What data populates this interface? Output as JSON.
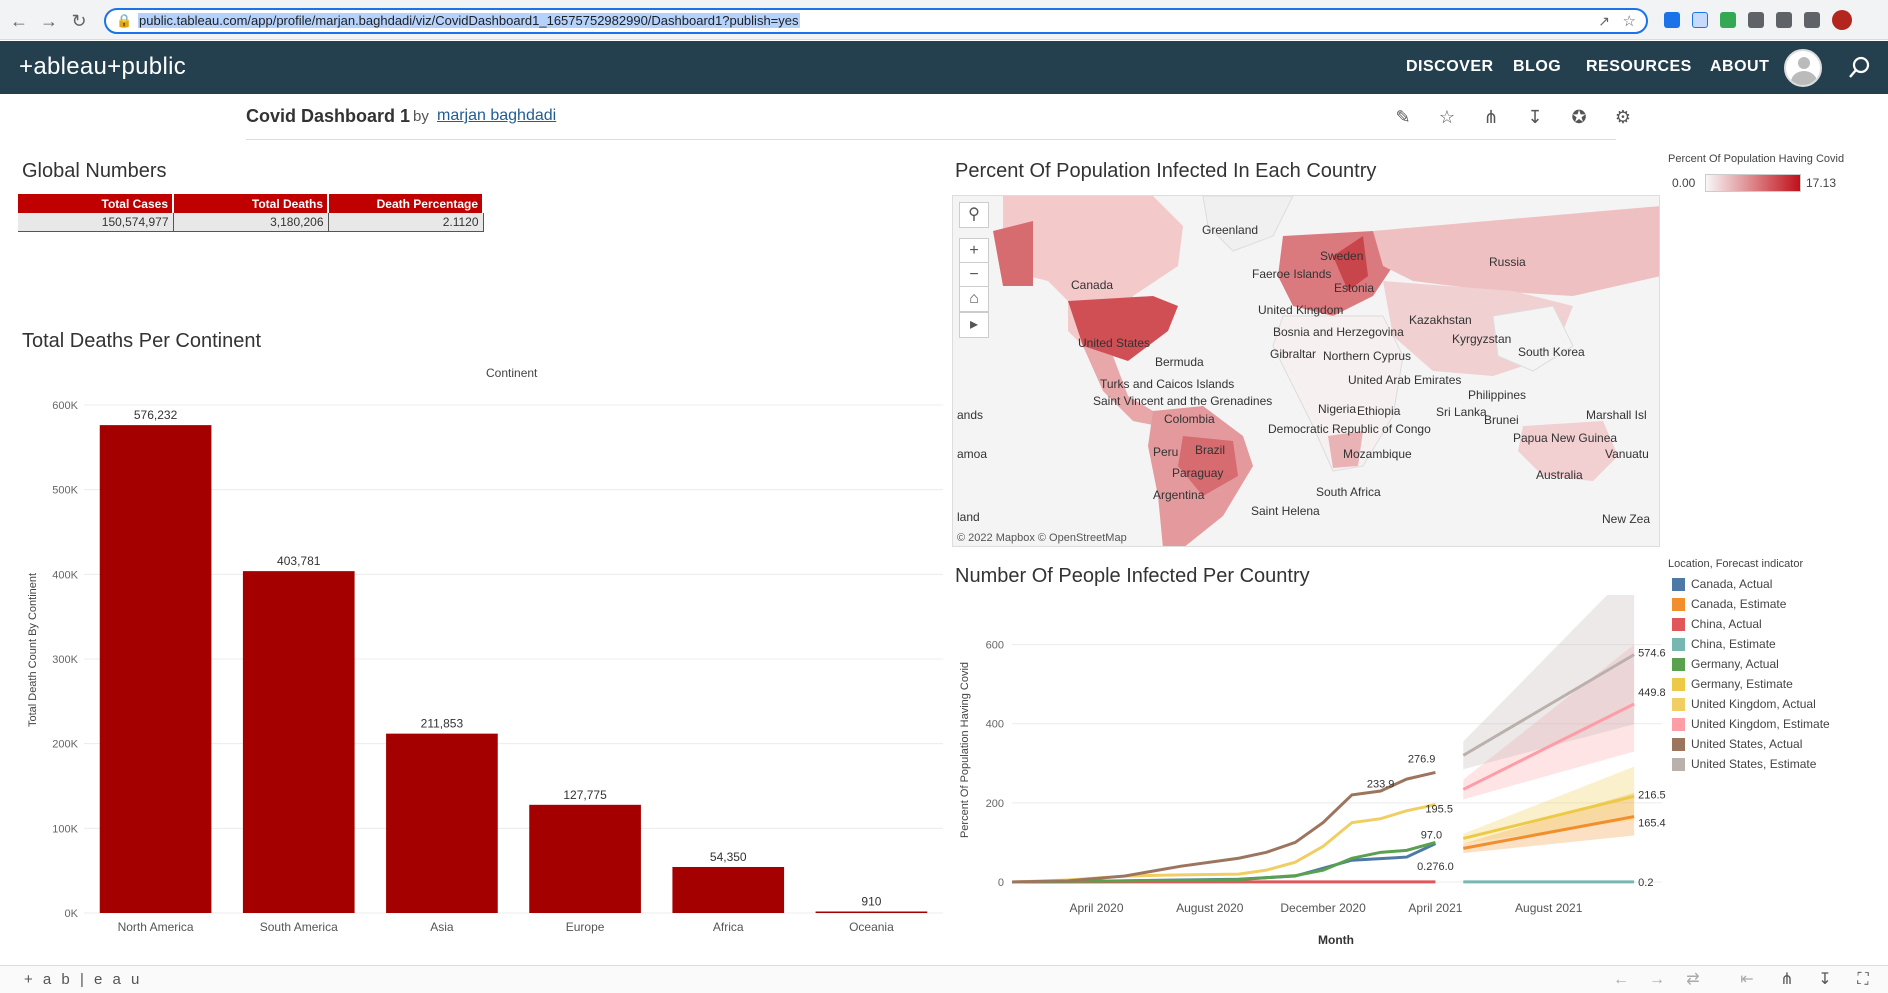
{
  "browser": {
    "url": "public.tableau.com/app/profile/marjan.baghdadi/viz/CovidDashboard1_16575752982990/Dashboard1?publish=yes"
  },
  "site": {
    "logo": "+ableau+public",
    "nav": [
      "DISCOVER",
      "BLOG",
      "RESOURCES",
      "ABOUT"
    ]
  },
  "viz": {
    "title": "Covid Dashboard 1",
    "by": "by",
    "author": "marjan baghdadi"
  },
  "global_numbers": {
    "title": "Global Numbers",
    "headers": [
      "Total Cases",
      "Total Deaths",
      "Death Percentage"
    ],
    "values": [
      "150,574,977",
      "3,180,206",
      "2.1120"
    ]
  },
  "deaths_chart": {
    "title": "Total Deaths Per Continent",
    "column_header": "Continent",
    "ylabel": "Total Death Count By Continent",
    "yticks": [
      "0K",
      "100K",
      "200K",
      "300K",
      "400K",
      "500K",
      "600K"
    ]
  },
  "map": {
    "title": "Percent Of Population Infected In Each Country",
    "attribution": "© 2022 Mapbox  © OpenStreetMap",
    "labels": [
      "Greenland",
      "Sweden",
      "Faeroe Islands",
      "Estonia",
      "Russia",
      "Canada",
      "United Kingdom",
      "Kazakhstan",
      "Bosnia and Herzegovina",
      "Kyrgyzstan",
      "United States",
      "Gibraltar",
      "Northern Cyprus",
      "South Korea",
      "Bermuda",
      "United Arab Emirates",
      "Turks and Caicos Islands",
      "Philippines",
      "Saint Vincent and the Grenadines",
      "Nigeria",
      "Ethiopia",
      "Sri Lanka",
      "Brunei",
      "Marshall Isl",
      "ands",
      "Colombia",
      "Democratic Republic of Congo",
      "Papua New Guinea",
      "Vanuatu",
      "Peru",
      "Brazil",
      "Mozambique",
      "amoa",
      "Paraguay",
      "Australia",
      "Argentina",
      "South Africa",
      "Saint Helena",
      "land",
      "New Zea"
    ]
  },
  "map_legend": {
    "title": "Percent Of Population Having Covid",
    "min": "0.00",
    "max": "17.13",
    "color_low": "#f7f7f7",
    "color_high": "#c0101a"
  },
  "line_chart": {
    "title": "Number Of People Infected Per Country",
    "ylabel": "Percent Of Population Having Covid",
    "xlabel": "Month",
    "yticks": [
      "0",
      "200",
      "400",
      "600"
    ],
    "xticks": [
      "April 2020",
      "August 2020",
      "December 2020",
      "April 2021",
      "August 2021"
    ]
  },
  "line_legend": {
    "title": "Location, Forecast indicator",
    "items": [
      {
        "label": "Canada, Actual",
        "color": "#4e79a7"
      },
      {
        "label": "Canada, Estimate",
        "color": "#f28e2b"
      },
      {
        "label": "China, Actual",
        "color": "#e15759"
      },
      {
        "label": "China, Estimate",
        "color": "#76b7b2"
      },
      {
        "label": "Germany, Actual",
        "color": "#59a14f"
      },
      {
        "label": "Germany, Estimate",
        "color": "#edc948"
      },
      {
        "label": "United Kingdom, Actual",
        "color": "#f1ce63"
      },
      {
        "label": "United Kingdom, Estimate",
        "color": "#ff9da7"
      },
      {
        "label": "United States, Actual",
        "color": "#9c755f"
      },
      {
        "label": "United States, Estimate",
        "color": "#bab0ac"
      }
    ]
  },
  "footer": {
    "logo": "+ a b | e a u"
  },
  "chart_data": [
    {
      "type": "bar",
      "title": "Total Deaths Per Continent",
      "xlabel": "Continent",
      "ylabel": "Total Death Count By Continent",
      "categories": [
        "North America",
        "South America",
        "Asia",
        "Europe",
        "Africa",
        "Oceania"
      ],
      "values": [
        576232,
        403781,
        211853,
        127775,
        54350,
        910
      ],
      "value_labels": [
        "576,232",
        "403,781",
        "211,853",
        "127,775",
        "54,350",
        "910"
      ],
      "ylim": [
        0,
        600000
      ],
      "color": "#a50000",
      "grid": true
    },
    {
      "type": "line",
      "title": "Number Of People Infected Per Country",
      "xlabel": "Month",
      "ylabel": "Percent Of Population Having Covid",
      "ylim": [
        0,
        700
      ],
      "series": [
        {
          "name": "Canada, Actual",
          "color": "#4e79a7",
          "x": [
            "2020-01",
            "2020-03",
            "2020-05",
            "2020-07",
            "2020-09",
            "2020-11",
            "2021-01",
            "2021-03",
            "2021-04"
          ],
          "y": [
            0,
            1,
            3,
            5,
            7,
            15,
            55,
            63,
            97.0
          ]
        },
        {
          "name": "Canada, Estimate",
          "color": "#f28e2b",
          "x": [
            "2021-05",
            "2021-11"
          ],
          "y": [
            85,
            165.4
          ]
        },
        {
          "name": "China, Actual",
          "color": "#e15759",
          "x": [
            "2020-01",
            "2020-06",
            "2021-04"
          ],
          "y": [
            0.1,
            0.2,
            0.276
          ]
        },
        {
          "name": "China, Estimate",
          "color": "#76b7b2",
          "x": [
            "2021-05",
            "2021-11"
          ],
          "y": [
            0.2,
            0.2
          ]
        },
        {
          "name": "Germany, Actual",
          "color": "#59a14f",
          "x": [
            "2020-01",
            "2020-03",
            "2020-05",
            "2020-07",
            "2020-09",
            "2020-11",
            "2020-12",
            "2021-01",
            "2021-02",
            "2021-03",
            "2021-04"
          ],
          "y": [
            0,
            2,
            3,
            4,
            6,
            16,
            30,
            60,
            75,
            80,
            100
          ]
        },
        {
          "name": "Germany, Estimate",
          "color": "#edc948",
          "x": [
            "2021-05",
            "2021-11"
          ],
          "y": [
            110,
            216.5
          ]
        },
        {
          "name": "United Kingdom, Actual",
          "color": "#f1ce63",
          "x": [
            "2020-01",
            "2020-03",
            "2020-05",
            "2020-07",
            "2020-09",
            "2020-10",
            "2020-11",
            "2020-12",
            "2021-01",
            "2021-02",
            "2021-03",
            "2021-04"
          ],
          "y": [
            0,
            5,
            15,
            18,
            20,
            30,
            50,
            90,
            150,
            160,
            180,
            195.5
          ]
        },
        {
          "name": "United Kingdom, Estimate",
          "color": "#ff9da7",
          "x": [
            "2021-05",
            "2021-11"
          ],
          "y": [
            233.9,
            449.8
          ]
        },
        {
          "name": "United States, Actual",
          "color": "#9c755f",
          "x": [
            "2020-01",
            "2020-03",
            "2020-05",
            "2020-07",
            "2020-09",
            "2020-10",
            "2020-11",
            "2020-12",
            "2021-01",
            "2021-02",
            "2021-03",
            "2021-04"
          ],
          "y": [
            0,
            3,
            15,
            40,
            60,
            75,
            100,
            150,
            220,
            230,
            260,
            276.9
          ]
        },
        {
          "name": "United States, Estimate",
          "color": "#bab0ac",
          "x": [
            "2021-05",
            "2021-11"
          ],
          "y": [
            320,
            574.6
          ]
        }
      ],
      "data_labels": [
        "276.9",
        "233.9",
        "195.5",
        "97.0",
        "0.276.0",
        "574.6",
        "449.8",
        "216.5",
        "165.4",
        "0.2"
      ]
    }
  ]
}
